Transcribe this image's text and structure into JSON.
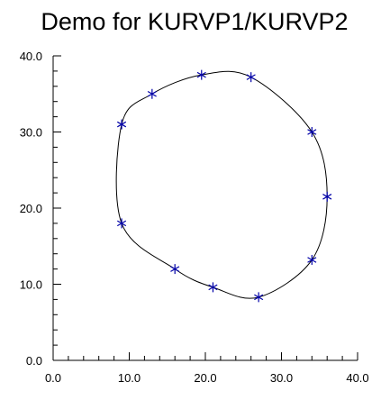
{
  "chart_data": {
    "type": "line",
    "title": "Demo for KURVP1/KURVP2",
    "xlabel": "",
    "ylabel": "",
    "xlim": [
      0,
      40
    ],
    "ylim": [
      0,
      40
    ],
    "x_ticks": [
      "0.0",
      "10.0",
      "20.0",
      "30.0",
      "40.0"
    ],
    "y_ticks": [
      "0.0",
      "10.0",
      "20.0",
      "30.0",
      "40.0"
    ],
    "grid": false,
    "closed_curve": true,
    "marker": "asterisk",
    "colors": {
      "curve": "#000000",
      "marker": "#0000a8"
    },
    "series": [
      {
        "x": [
          9,
          13,
          19.5,
          26,
          34,
          36,
          34,
          27,
          21,
          16,
          9
        ],
        "y": [
          18,
          35,
          37.5,
          37.2,
          30,
          21.5,
          13.2,
          8.3,
          9.6,
          12,
          31
        ]
      }
    ]
  }
}
